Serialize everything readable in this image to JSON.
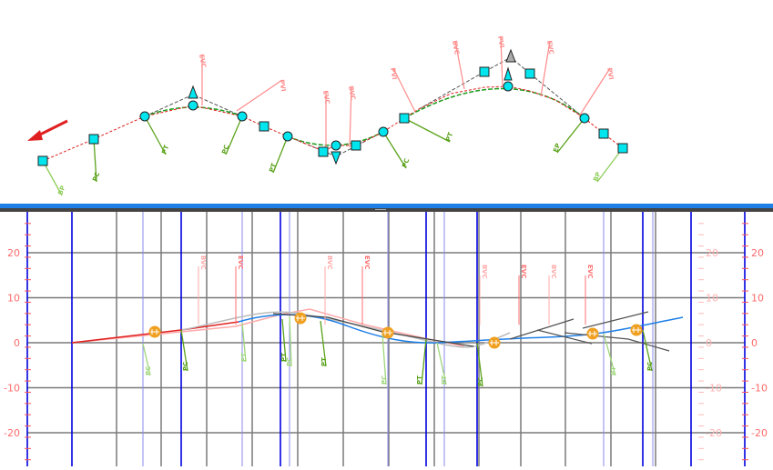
{
  "plan_view": {
    "direction_arrow_color": "#e02020",
    "alignment_color": "#e02020",
    "grip_color": "#00e5ee",
    "geometry_labels": [
      {
        "text": "BP",
        "color": "#8fce5a"
      },
      {
        "text": "PC",
        "color": "#5aa21a"
      },
      {
        "text": "PT",
        "color": "#5aa21a"
      },
      {
        "text": "PC",
        "color": "#5aa21a"
      },
      {
        "text": "PT",
        "color": "#5aa21a"
      },
      {
        "text": "PC",
        "color": "#5aa21a"
      },
      {
        "text": "PT",
        "color": "#5aa21a"
      },
      {
        "text": "EP",
        "color": "#5aa21a"
      }
    ],
    "vertical_labels": [
      {
        "text": "EVC"
      },
      {
        "text": "PVI"
      },
      {
        "text": "EVC"
      },
      {
        "text": "BVC"
      },
      {
        "text": "PVI"
      },
      {
        "text": "BVC"
      },
      {
        "text": "PVI"
      },
      {
        "text": "EVC"
      },
      {
        "text": "PVI"
      }
    ]
  },
  "profile_view": {
    "y_axis_left": [
      "20",
      "10",
      "0",
      "-10",
      "-20"
    ],
    "y_axis_right": [
      "20",
      "10",
      "0",
      "-10",
      "-20"
    ],
    "upper_labels": [
      "BVC",
      "EVC",
      "BVC",
      "EVC",
      "BVC",
      "EVC",
      "BVC",
      "EVC"
    ],
    "lower_labels": [
      "PC",
      "PC",
      "PT",
      "PT",
      "PC",
      "PT",
      "PC",
      "PT",
      "PT",
      "PC",
      "PT",
      "PC"
    ],
    "colors": {
      "grid": "#7a7a7a",
      "axis": "#0000e0",
      "profile_existing": "#e02020",
      "profile_design": "#1e7fe6",
      "label": "#ff7070",
      "geometry": "#5aa21a",
      "pvi_marker": "#f0a020"
    }
  }
}
